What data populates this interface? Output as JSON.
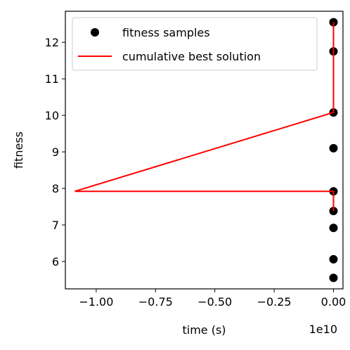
{
  "chart_data": {
    "type": "scatter",
    "xlabel": "time (s)",
    "ylabel": "fitness",
    "x_offset_label": "1e10",
    "xlim": [
      -1.13,
      0.04
    ],
    "ylim": [
      5.25,
      12.85
    ],
    "x_ticks": [
      -1.0,
      -0.75,
      -0.5,
      -0.25,
      0.0
    ],
    "x_tick_labels": [
      "−1.00",
      "−0.75",
      "−0.50",
      "−0.25",
      "0.00"
    ],
    "y_ticks": [
      6,
      7,
      8,
      9,
      10,
      11,
      12
    ],
    "y_tick_labels": [
      "6",
      "7",
      "8",
      "9",
      "10",
      "11",
      "12"
    ],
    "grid": false,
    "legend_position": "top-right",
    "series": [
      {
        "name": "fitness samples",
        "kind": "scatter",
        "color": "#000000",
        "points": [
          {
            "x": 0.0,
            "y": 12.55
          },
          {
            "x": 0.0,
            "y": 11.75
          },
          {
            "x": 0.0,
            "y": 10.08
          },
          {
            "x": 0.0,
            "y": 9.1
          },
          {
            "x": 0.0,
            "y": 7.92
          },
          {
            "x": 0.0,
            "y": 7.38
          },
          {
            "x": 0.0,
            "y": 6.92
          },
          {
            "x": 0.0,
            "y": 6.06
          },
          {
            "x": 0.0,
            "y": 5.55
          }
        ]
      },
      {
        "name": "cumulative best solution",
        "kind": "line",
        "color": "#ff0000",
        "points": [
          {
            "x": 0.0,
            "y": 12.55
          },
          {
            "x": 0.0,
            "y": 10.08
          },
          {
            "x": -1.09,
            "y": 7.92
          },
          {
            "x": 0.0,
            "y": 7.92
          },
          {
            "x": 0.0,
            "y": 7.38
          }
        ]
      }
    ]
  }
}
